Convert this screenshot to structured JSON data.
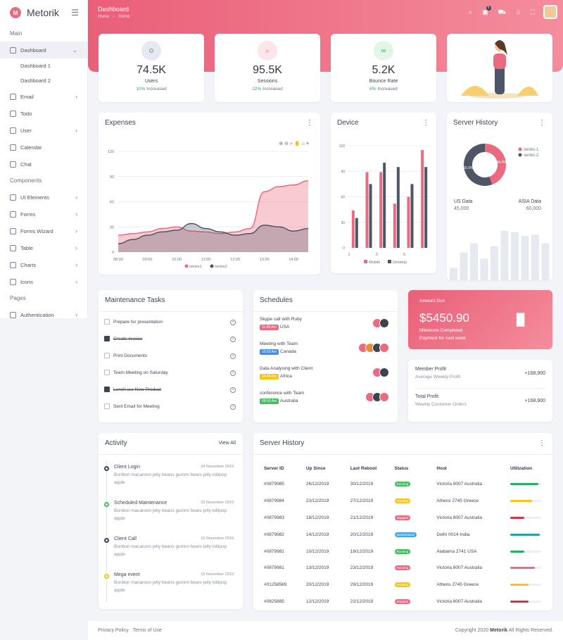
{
  "brand": {
    "name": "Metorik"
  },
  "sidebar": {
    "section_main": "Main",
    "section_components": "Components",
    "section_pages": "Pages",
    "items": [
      {
        "label": "Dashboard"
      },
      {
        "label": "Dashboard 1"
      },
      {
        "label": "Dashboard 2"
      },
      {
        "label": "Email"
      },
      {
        "label": "Todo"
      },
      {
        "label": "User"
      },
      {
        "label": "Calendar"
      },
      {
        "label": "Chat"
      },
      {
        "label": "UI Elements"
      },
      {
        "label": "Forms"
      },
      {
        "label": "Forms Wizard"
      },
      {
        "label": "Table"
      },
      {
        "label": "Charts"
      },
      {
        "label": "Icons"
      },
      {
        "label": "Authentication"
      }
    ]
  },
  "header": {
    "title": "Dashboard",
    "crumb_home": "Home",
    "crumb_sep": "›",
    "crumb_current": "Home",
    "badge": "5"
  },
  "stats": [
    {
      "value": "74.5K",
      "label": "Users",
      "change": "10%",
      "change_text": "Increased",
      "color": "#e6e9ef",
      "icon": "user-icon"
    },
    {
      "value": "95.5K",
      "label": "Sessions",
      "change": "22%",
      "change_text": "Increased",
      "color": "#fde6e9",
      "icon": "search-icon"
    },
    {
      "value": "5.2K",
      "label": "Bounce Rate",
      "change": "6%",
      "change_text": "Increased",
      "color": "#e3f5e6",
      "icon": "link-icon"
    }
  ],
  "expenses": {
    "title": "Expenses"
  },
  "device": {
    "title": "Device"
  },
  "server_history_card": {
    "title": "Server History",
    "us_label": "US Data",
    "us_value": "45,000",
    "asia_label": "ASIA Data",
    "asia_value": "60,000"
  },
  "amount_due": {
    "label": "Amount Due",
    "value": "$5450.90",
    "line1": "Milestone Completed",
    "line2": "Payment for next week"
  },
  "profits": [
    {
      "title": "Member Profit",
      "sub": "Average Weekly Profit",
      "value": "+168,900"
    },
    {
      "title": "Total Profit",
      "sub": "Weekly Customer Orders",
      "value": "+168,900"
    }
  ],
  "maintenance": {
    "title": "Maintenance Tasks",
    "tasks": [
      {
        "label": "Prepare for presentation",
        "done": false
      },
      {
        "label": "Create invoice",
        "done": true
      },
      {
        "label": "Print Documents",
        "done": false
      },
      {
        "label": "Team Meeting on Saturday",
        "done": false
      },
      {
        "label": "Lunch our New Product",
        "done": true
      },
      {
        "label": "Sent Email for Meeting",
        "done": false
      }
    ]
  },
  "schedules": {
    "title": "Schedules",
    "items": [
      {
        "title": "Skype call with Ruby",
        "time": "11:45 Am",
        "place": "USA",
        "color": "#ea6b7f"
      },
      {
        "title": "Meeting with Team",
        "time": "10:50 Am",
        "place": "Canada",
        "color": "#3f8fe8"
      },
      {
        "title": "Data Analysing with Client",
        "time": "10:45 Am",
        "place": "Africa",
        "color": "#f5c518"
      },
      {
        "title": "conference with Team",
        "time": "08:50 Am",
        "place": "Australia",
        "color": "#3fbf5f"
      }
    ]
  },
  "activity": {
    "title": "Activity",
    "view_all": "View All",
    "items": [
      {
        "title": "Client Login",
        "date": "24 November 2019",
        "text": "Bonbon macaroon jelly beans gummi bears jelly lollipop apple",
        "color": "#3d4451"
      },
      {
        "title": "Scheduled Maintenance",
        "date": "23 November 2019",
        "text": "Bonbon macaroon jelly beans gummi bears jelly lollipop apple",
        "color": "#3fbf5f"
      },
      {
        "title": "Client Call",
        "date": "19 November 2019",
        "text": "Bonbon macaroon jelly beans gummi bears jelly lollipop apple",
        "color": "#3d4451"
      },
      {
        "title": "Mega event",
        "date": "15 November 2019",
        "text": "Bonbon macaroon jelly beans gummi bears jelly lollipop apple",
        "color": "#f5c518"
      }
    ]
  },
  "server_table": {
    "title": "Server History",
    "headers": [
      "Server ID",
      "Up Since",
      "Last Reboot",
      "Status",
      "Host",
      "Utilization"
    ],
    "rows": [
      {
        "id": "#0879985",
        "up": "26/12/2019",
        "reboot": "30/12/2019",
        "status": "Running",
        "status_color": "#3fbf5f",
        "host": "Victoria 8007 Australia",
        "util": 0.9,
        "util_color": "#27ae60"
      },
      {
        "id": "#0879984",
        "up": "23/12/2019",
        "reboot": "27/12/2019",
        "status": "Pending",
        "status_color": "#f5c518",
        "host": "Athens 2745 Greece",
        "util": 0.7,
        "util_color": "#f5c518"
      },
      {
        "id": "#0879983",
        "up": "18/12/2019",
        "reboot": "21/12/2019",
        "status": "Stopped",
        "status_color": "#ea6b7f",
        "host": "Victoria 8007 Australia",
        "util": 0.45,
        "util_color": "#d6334b"
      },
      {
        "id": "#0879982",
        "up": "14/12/2019",
        "reboot": "20/12/2019",
        "status": "Maintenance",
        "status_color": "#3fa9e8",
        "host": "Delhi 0014 India",
        "util": 0.95,
        "util_color": "#1fa5a5"
      },
      {
        "id": "#0879981",
        "up": "10/12/2019",
        "reboot": "18/12/2019",
        "status": "Running",
        "status_color": "#3fbf5f",
        "host": "Alabama 2741 USA",
        "util": 0.45,
        "util_color": "#27ae60"
      },
      {
        "id": "#0879981",
        "up": "13/12/2019",
        "reboot": "23/12/2019",
        "status": "Running",
        "status_color": "#ea6b7f",
        "host": "Victoria 8007 Australia",
        "util": 0.8,
        "util_color": "#ea6b7f"
      },
      {
        "id": "#01258569",
        "up": "20/12/2019",
        "reboot": "29/12/2019",
        "status": "Pending",
        "status_color": "#f5c518",
        "host": "Athens 2745 Greece",
        "util": 0.6,
        "util_color": "#f5c518"
      },
      {
        "id": "#0825685",
        "up": "12/12/2019",
        "reboot": "22/12/2019",
        "status": "Stopped",
        "status_color": "#ea6b7f",
        "host": "Victoria 8007 Australia",
        "util": 0.6,
        "util_color": "#d6334b"
      }
    ]
  },
  "footer": {
    "privacy": "Privacy Policy",
    "terms": "Terms of Use",
    "copyright_pre": "Copyright 2020 ",
    "copyright_brand": "Metorik",
    "copyright_post": " All Rights Reserved."
  },
  "chart_data": [
    {
      "type": "area",
      "title": "Expenses",
      "categories": [
        "08:00",
        "09:00",
        "10:00",
        "11:00",
        "12:00",
        "13:00",
        "14:00"
      ],
      "x": [
        "08:00",
        "08:30",
        "09:00",
        "09:30",
        "10:00",
        "10:30",
        "11:00",
        "11:30",
        "12:00",
        "12:30",
        "13:00",
        "13:30",
        "14:00",
        "14:30"
      ],
      "series": [
        {
          "name": "series1",
          "values": [
            20,
            22,
            24,
            28,
            30,
            25,
            24,
            22,
            24,
            28,
            72,
            78,
            80,
            85
          ],
          "color": "#ea6b7f"
        },
        {
          "name": "series2",
          "values": [
            10,
            15,
            20,
            24,
            26,
            34,
            28,
            24,
            20,
            22,
            32,
            30,
            25,
            28
          ],
          "color": "#4d5566"
        }
      ],
      "ylim": [
        0,
        120
      ],
      "yticks": [
        0,
        30,
        60,
        90,
        120
      ],
      "grid": true,
      "legend": "bottom"
    },
    {
      "type": "bar",
      "title": "Device",
      "x": [
        1,
        2,
        3,
        4,
        5,
        6
      ],
      "xticks": [
        1,
        3,
        5
      ],
      "series": [
        {
          "name": "Mobile",
          "values": [
            44,
            89,
            89,
            52,
            60,
            115
          ],
          "color": "#ea6b7f"
        },
        {
          "name": "Desktop",
          "values": [
            35,
            75,
            100,
            95,
            75,
            95
          ],
          "color": "#4d5566"
        }
      ],
      "ylim": [
        0,
        120
      ],
      "yticks": [
        0,
        30,
        60,
        90,
        120
      ],
      "grid": true,
      "legend": "bottom"
    },
    {
      "type": "pie",
      "title": "Server History",
      "labels": [
        "series-1",
        "series-2"
      ],
      "values": [
        44.4,
        55.6
      ],
      "data_labels": [
        "44.4%",
        "55.6%"
      ],
      "colors": [
        "#ea6b7f",
        "#4d5566"
      ],
      "legend": "right"
    },
    {
      "type": "bar",
      "title": "",
      "values": [
        20,
        45,
        60,
        35,
        55,
        80,
        78,
        72,
        74,
        60
      ],
      "color": "#e6e9ef"
    }
  ]
}
